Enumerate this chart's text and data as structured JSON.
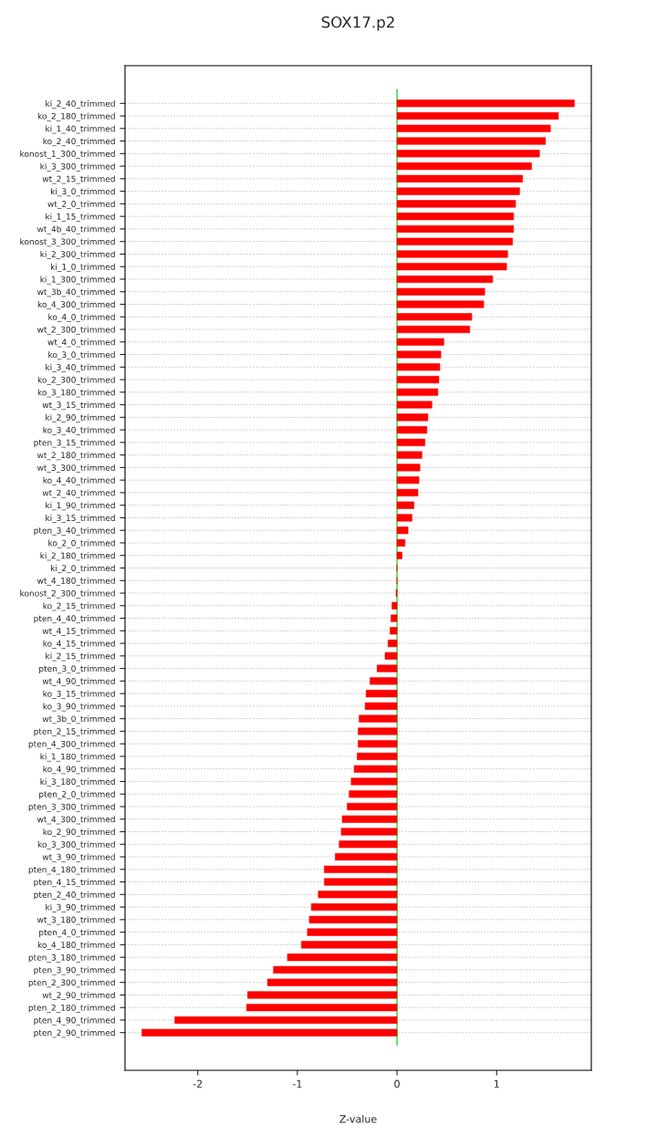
{
  "chart_data": {
    "type": "bar",
    "orientation": "horizontal",
    "title": "SOX17.p2",
    "xlabel": "Z-value",
    "categories": [
      "ki_2_40_trimmed",
      "ko_2_180_trimmed",
      "ki_1_40_trimmed",
      "ko_2_40_trimmed",
      "konost_1_300_trimmed",
      "ki_3_300_trimmed",
      "wt_2_15_trimmed",
      "ki_3_0_trimmed",
      "wt_2_0_trimmed",
      "ki_1_15_trimmed",
      "wt_4b_40_trimmed",
      "konost_3_300_trimmed",
      "ki_2_300_trimmed",
      "ki_1_0_trimmed",
      "ki_1_300_trimmed",
      "wt_3b_40_trimmed",
      "ko_4_300_trimmed",
      "ko_4_0_trimmed",
      "wt_2_300_trimmed",
      "wt_4_0_trimmed",
      "ko_3_0_trimmed",
      "ki_3_40_trimmed",
      "ko_2_300_trimmed",
      "ko_3_180_trimmed",
      "wt_3_15_trimmed",
      "ki_2_90_trimmed",
      "ko_3_40_trimmed",
      "pten_3_15_trimmed",
      "wt_2_180_trimmed",
      "wt_3_300_trimmed",
      "ko_4_40_trimmed",
      "wt_2_40_trimmed",
      "ki_1_90_trimmed",
      "ki_3_15_trimmed",
      "pten_3_40_trimmed",
      "ko_2_0_trimmed",
      "ki_2_180_trimmed",
      "ki_2_0_trimmed",
      "wt_4_180_trimmed",
      "konost_2_300_trimmed",
      "ko_2_15_trimmed",
      "pten_4_40_trimmed",
      "wt_4_15_trimmed",
      "ko_4_15_trimmed",
      "ki_2_15_trimmed",
      "pten_3_0_trimmed",
      "wt_4_90_trimmed",
      "ko_3_15_trimmed",
      "ko_3_90_trimmed",
      "wt_3b_0_trimmed",
      "pten_2_15_trimmed",
      "pten_4_300_trimmed",
      "ki_1_180_trimmed",
      "ko_4_90_trimmed",
      "ki_3_180_trimmed",
      "pten_2_0_trimmed",
      "pten_3_300_trimmed",
      "wt_4_300_trimmed",
      "ko_2_90_trimmed",
      "ko_3_300_trimmed",
      "wt_3_90_trimmed",
      "pten_4_180_trimmed",
      "pten_4_15_trimmed",
      "pten_2_40_trimmed",
      "ki_3_90_trimmed",
      "wt_3_180_trimmed",
      "pten_4_0_trimmed",
      "ko_4_180_trimmed",
      "pten_3_180_trimmed",
      "pten_3_90_trimmed",
      "pten_2_300_trimmed",
      "wt_2_90_trimmed",
      "pten_2_180_trimmed",
      "pten_4_90_trimmed",
      "pten_2_90_trimmed"
    ],
    "values": [
      1.78,
      1.62,
      1.54,
      1.49,
      1.43,
      1.35,
      1.26,
      1.23,
      1.19,
      1.17,
      1.17,
      1.16,
      1.11,
      1.1,
      0.96,
      0.88,
      0.87,
      0.75,
      0.73,
      0.47,
      0.44,
      0.43,
      0.42,
      0.41,
      0.35,
      0.31,
      0.3,
      0.28,
      0.25,
      0.23,
      0.22,
      0.21,
      0.17,
      0.15,
      0.11,
      0.08,
      0.05,
      0.0,
      0.0,
      -0.01,
      -0.05,
      -0.06,
      -0.07,
      -0.09,
      -0.12,
      -0.2,
      -0.27,
      -0.31,
      -0.32,
      -0.38,
      -0.39,
      -0.39,
      -0.4,
      -0.43,
      -0.46,
      -0.48,
      -0.5,
      -0.55,
      -0.56,
      -0.58,
      -0.62,
      -0.73,
      -0.73,
      -0.79,
      -0.86,
      -0.88,
      -0.9,
      -0.96,
      -1.1,
      -1.24,
      -1.3,
      -1.5,
      -1.51,
      -2.23,
      -2.56
    ],
    "color": "#ff0000",
    "xlim": [
      -2.73,
      1.95
    ],
    "xticks": [
      -2,
      -1,
      0,
      1
    ],
    "ref_lines": [
      {
        "axis": "x",
        "value": 0,
        "color": "#00c000"
      }
    ],
    "grid": "y"
  }
}
